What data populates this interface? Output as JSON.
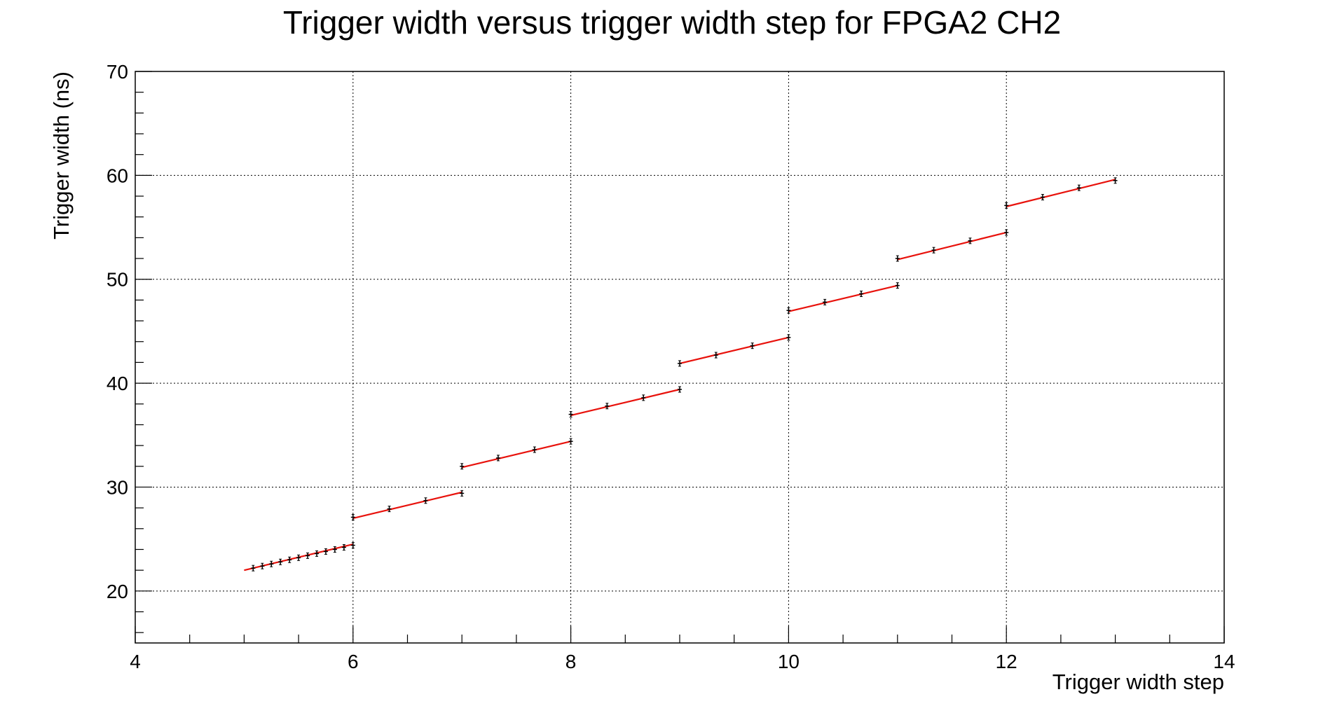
{
  "chart_data": {
    "type": "scatter",
    "title": "Trigger width versus trigger width step for FPGA2 CH2",
    "xlabel": "Trigger width step",
    "ylabel": "Trigger width (ns)",
    "xlim": [
      4,
      14
    ],
    "ylim": [
      15,
      70
    ],
    "x_ticks": [
      4,
      6,
      8,
      10,
      12,
      14
    ],
    "y_ticks": [
      20,
      30,
      40,
      50,
      60,
      70
    ],
    "grid": true,
    "legend": "none",
    "colors": {
      "points": "#000000",
      "fit_line": "#e8120c"
    },
    "series": [
      {
        "x": [
          5.083,
          5.167,
          5.25,
          5.333,
          5.417,
          5.5,
          5.583,
          5.667,
          5.75,
          5.833,
          5.917,
          6.0
        ],
        "y": [
          22.2,
          22.4,
          22.6,
          22.8,
          23.0,
          23.2,
          23.4,
          23.6,
          23.8,
          24.0,
          24.2,
          24.4
        ]
      },
      {
        "x": [
          6.0,
          6.333,
          6.667,
          7.0
        ],
        "y": [
          27.1,
          27.9,
          28.7,
          29.4
        ]
      },
      {
        "x": [
          7.0,
          7.333,
          7.667,
          8.0
        ],
        "y": [
          32.0,
          32.8,
          33.6,
          34.4
        ]
      },
      {
        "x": [
          8.0,
          8.333,
          8.667,
          9.0
        ],
        "y": [
          37.0,
          37.8,
          38.6,
          39.4
        ]
      },
      {
        "x": [
          9.0,
          9.333,
          9.667,
          10.0
        ],
        "y": [
          41.9,
          42.7,
          43.6,
          44.4
        ]
      },
      {
        "x": [
          10.0,
          10.333,
          10.667,
          11.0
        ],
        "y": [
          47.0,
          47.8,
          48.6,
          49.4
        ]
      },
      {
        "x": [
          11.0,
          11.333,
          11.667,
          12.0
        ],
        "y": [
          52.0,
          52.8,
          53.7,
          54.5
        ]
      },
      {
        "x": [
          12.0,
          12.333,
          12.667,
          13.0
        ],
        "y": [
          57.1,
          57.9,
          58.8,
          59.5
        ]
      }
    ],
    "fit_lines": [
      {
        "x": [
          5.0,
          6.0
        ],
        "y": [
          22.0,
          24.5
        ]
      },
      {
        "x": [
          6.0,
          7.0
        ],
        "y": [
          27.0,
          29.5
        ]
      },
      {
        "x": [
          7.0,
          8.0
        ],
        "y": [
          31.9,
          34.4
        ]
      },
      {
        "x": [
          8.0,
          9.0
        ],
        "y": [
          36.9,
          39.4
        ]
      },
      {
        "x": [
          9.0,
          10.0
        ],
        "y": [
          41.9,
          44.4
        ]
      },
      {
        "x": [
          10.0,
          11.0
        ],
        "y": [
          46.9,
          49.4
        ]
      },
      {
        "x": [
          11.0,
          12.0
        ],
        "y": [
          51.9,
          54.5
        ]
      },
      {
        "x": [
          12.0,
          13.0
        ],
        "y": [
          57.0,
          59.6
        ]
      }
    ]
  }
}
